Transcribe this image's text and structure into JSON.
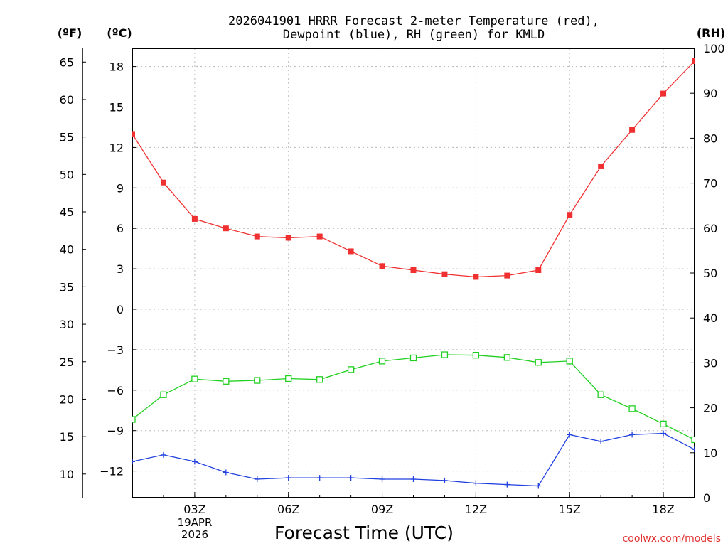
{
  "title_line1": "2026041901 HRRR Forecast 2-meter Temperature (red),",
  "title_line2": "Dewpoint (blue), RH (green) for KMLD",
  "unit_f": "(ºF)",
  "unit_c": "(ºC)",
  "unit_rh": "(RH)",
  "x_axis_label": "Forecast Time (UTC)",
  "date_line1": "19APR",
  "date_line2": "2026",
  "watermark": "coolwx.com/models",
  "chart_data": {
    "type": "line",
    "title": "2026041901 HRRR Forecast 2-meter Temperature (red), Dewpoint (blue), RH (green) for KMLD",
    "xlabel": "Forecast Time (UTC)",
    "x_hours": [
      1,
      2,
      3,
      4,
      5,
      6,
      7,
      8,
      9,
      10,
      11,
      12,
      13,
      14,
      15,
      16,
      17,
      18,
      19
    ],
    "x_ticks": [
      {
        "hour": 3,
        "label": "03Z"
      },
      {
        "hour": 6,
        "label": "06Z"
      },
      {
        "hour": 9,
        "label": "09Z"
      },
      {
        "hour": 12,
        "label": "12Z"
      },
      {
        "hour": 15,
        "label": "15Z"
      },
      {
        "hour": 18,
        "label": "18Z"
      }
    ],
    "xlim": [
      1,
      19
    ],
    "ylim_c": [
      -14,
      19.5
    ],
    "ylim_rh": [
      0,
      100
    ],
    "c_ticks": [
      18,
      15,
      12,
      9,
      6,
      3,
      0,
      -3,
      -6,
      -9,
      -12
    ],
    "f_ticks": [
      65,
      60,
      55,
      50,
      45,
      40,
      35,
      30,
      25,
      20,
      15,
      10
    ],
    "rh_ticks": [
      100,
      90,
      80,
      70,
      60,
      50,
      40,
      30,
      20,
      10,
      0
    ],
    "grid": true,
    "series": [
      {
        "name": "Temperature",
        "unit": "C",
        "color": "#f03030",
        "marker": "filled-square",
        "values": [
          13.0,
          9.4,
          6.7,
          6.0,
          5.4,
          5.3,
          5.4,
          4.3,
          3.2,
          2.9,
          2.6,
          2.4,
          2.5,
          2.9,
          7.0,
          10.6,
          13.3,
          16.0,
          18.4
        ]
      },
      {
        "name": "Dewpoint",
        "unit": "C",
        "color": "#2040e0",
        "marker": "plus",
        "values": [
          -11.3,
          -10.8,
          -11.3,
          -12.1,
          -12.6,
          -12.5,
          -12.5,
          -12.5,
          -12.6,
          -12.6,
          -12.7,
          -12.9,
          -13.0,
          -13.1,
          -9.3,
          -9.8,
          -9.3,
          -9.2,
          -10.4
        ]
      },
      {
        "name": "RH",
        "unit": "%",
        "color": "#20d020",
        "marker": "open-square",
        "values": [
          17.4,
          22.9,
          26.4,
          25.9,
          26.1,
          26.5,
          26.3,
          28.5,
          30.4,
          31.1,
          31.8,
          31.7,
          31.2,
          30.1,
          30.4,
          22.9,
          19.8,
          16.4,
          12.9
        ]
      }
    ]
  }
}
